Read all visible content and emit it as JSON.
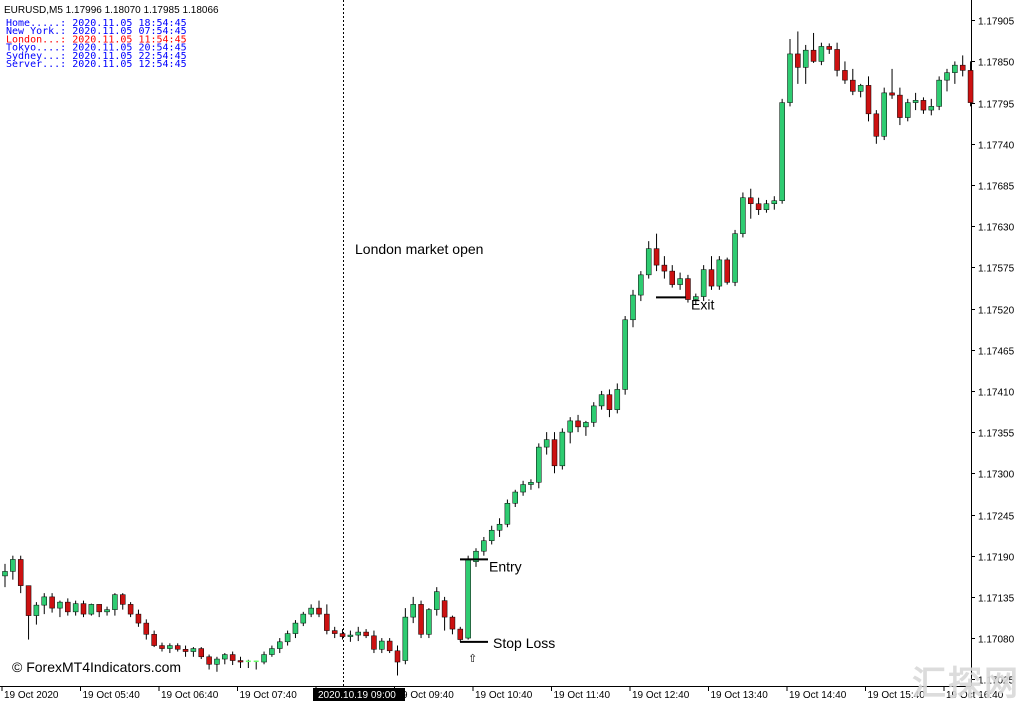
{
  "chart_data": {
    "type": "candlestick",
    "header": "EURUSD,M5  1.17996 1.18070 1.17985 1.18066",
    "symbol": "EURUSD",
    "timeframe": "M5",
    "ohlc_header": {
      "open": 1.17996,
      "high": 1.1807,
      "low": 1.17985,
      "close": 1.18066
    },
    "clocks": [
      {
        "label": "Home.....: 2020.11.05 18:54:45",
        "color": "#0000ff"
      },
      {
        "label": "New York.: 2020.11.05 07:54:45",
        "color": "#0000ff"
      },
      {
        "label": "London...: 2020.11.05 11:54:45",
        "color": "#ff0000"
      },
      {
        "label": "Tokyo....: 2020.11.05 20:54:45",
        "color": "#0000ff"
      },
      {
        "label": "Sydney...: 2020.11.05 22:54:45",
        "color": "#0000ff"
      },
      {
        "label": "Server...: 2020.11.05 12:54:45",
        "color": "#0000ff"
      }
    ],
    "y_ticks": [
      1.17905,
      1.1785,
      1.17795,
      1.1774,
      1.17685,
      1.1763,
      1.17575,
      1.1752,
      1.17465,
      1.1741,
      1.17355,
      1.173,
      1.17245,
      1.1719,
      1.17135,
      1.1708,
      1.17025
    ],
    "y_tick_labels": [
      "1.17905",
      "1.17850",
      "1.17795",
      "1.17740",
      "1.17685",
      "1.17630",
      "1.17575",
      "1.17520",
      "1.17465",
      "1.17410",
      "1.17355",
      "1.17300",
      "1.17245",
      "1.17190",
      "1.17135",
      "1.17080",
      "1.17025"
    ],
    "y_range": [
      1.17016,
      1.17932
    ],
    "x_labels": [
      "19 Oct 2020",
      "19 Oct 05:40",
      "19 Oct 06:40",
      "19 Oct 07:40",
      "2020.10.19 09:00",
      "19 Oct 09:40",
      "19 Oct 10:40",
      "19 Oct 11:40",
      "19 Oct 12:40",
      "19 Oct 13:40",
      "19 Oct 14:40",
      "19 Oct 15:40",
      "19 Oct 16:40"
    ],
    "x_label_highlight_index": 4,
    "annotations": {
      "session": "London market open",
      "entry": "Entry",
      "exit": "Exit",
      "stop_loss": "Stop Loss",
      "entry_price": 1.17185,
      "exit_price": 1.17535,
      "stop_loss_price": 1.17075
    },
    "colors": {
      "bull": "#2ecc71",
      "bear": "#cc1111",
      "doji": "#66ff66",
      "wick": "#000000"
    },
    "candles": [
      {
        "o": 1.17163,
        "h": 1.17179,
        "l": 1.17148,
        "c": 1.17169
      },
      {
        "o": 1.17169,
        "h": 1.1719,
        "l": 1.17158,
        "c": 1.17185
      },
      {
        "o": 1.17185,
        "h": 1.1719,
        "l": 1.1714,
        "c": 1.1715
      },
      {
        "o": 1.1715,
        "h": 1.1715,
        "l": 1.17078,
        "c": 1.1711
      },
      {
        "o": 1.1711,
        "h": 1.17128,
        "l": 1.17098,
        "c": 1.17124
      },
      {
        "o": 1.17124,
        "h": 1.1714,
        "l": 1.17112,
        "c": 1.17135
      },
      {
        "o": 1.17135,
        "h": 1.1714,
        "l": 1.17114,
        "c": 1.1712
      },
      {
        "o": 1.1712,
        "h": 1.1713,
        "l": 1.17108,
        "c": 1.17128
      },
      {
        "o": 1.17128,
        "h": 1.17133,
        "l": 1.1711,
        "c": 1.17115
      },
      {
        "o": 1.17115,
        "h": 1.1713,
        "l": 1.1711,
        "c": 1.17126
      },
      {
        "o": 1.17126,
        "h": 1.1713,
        "l": 1.17108,
        "c": 1.17112
      },
      {
        "o": 1.17112,
        "h": 1.17126,
        "l": 1.1711,
        "c": 1.17125
      },
      {
        "o": 1.17125,
        "h": 1.17125,
        "l": 1.17108,
        "c": 1.17115
      },
      {
        "o": 1.17115,
        "h": 1.17122,
        "l": 1.1711,
        "c": 1.17118
      },
      {
        "o": 1.17118,
        "h": 1.1714,
        "l": 1.1711,
        "c": 1.17138
      },
      {
        "o": 1.17138,
        "h": 1.1714,
        "l": 1.17118,
        "c": 1.17125
      },
      {
        "o": 1.17125,
        "h": 1.17128,
        "l": 1.17108,
        "c": 1.17112
      },
      {
        "o": 1.17112,
        "h": 1.17118,
        "l": 1.17095,
        "c": 1.171
      },
      {
        "o": 1.171,
        "h": 1.17105,
        "l": 1.17078,
        "c": 1.17085
      },
      {
        "o": 1.17085,
        "h": 1.1709,
        "l": 1.17068,
        "c": 1.1707
      },
      {
        "o": 1.1707,
        "h": 1.17074,
        "l": 1.17062,
        "c": 1.17066
      },
      {
        "o": 1.17066,
        "h": 1.17073,
        "l": 1.1706,
        "c": 1.1707
      },
      {
        "o": 1.1707,
        "h": 1.17073,
        "l": 1.17062,
        "c": 1.17065
      },
      {
        "o": 1.17065,
        "h": 1.1707,
        "l": 1.17055,
        "c": 1.17062
      },
      {
        "o": 1.17062,
        "h": 1.17068,
        "l": 1.17055,
        "c": 1.17066
      },
      {
        "o": 1.17066,
        "h": 1.17068,
        "l": 1.17052,
        "c": 1.17055
      },
      {
        "o": 1.17055,
        "h": 1.17058,
        "l": 1.17038,
        "c": 1.17045
      },
      {
        "o": 1.17045,
        "h": 1.17055,
        "l": 1.17035,
        "c": 1.17052
      },
      {
        "o": 1.17052,
        "h": 1.1706,
        "l": 1.17045,
        "c": 1.17058
      },
      {
        "o": 1.17058,
        "h": 1.17062,
        "l": 1.17044,
        "c": 1.1705
      },
      {
        "o": 1.1705,
        "h": 1.17055,
        "l": 1.1704,
        "c": 1.17048
      },
      {
        "o": 1.17048,
        "h": 1.17051,
        "l": 1.1704,
        "c": 1.17049
      },
      {
        "o": 1.17049,
        "h": 1.1705,
        "l": 1.17038,
        "c": 1.17048
      },
      {
        "o": 1.17048,
        "h": 1.17062,
        "l": 1.17045,
        "c": 1.17058
      },
      {
        "o": 1.17058,
        "h": 1.1707,
        "l": 1.17055,
        "c": 1.17066
      },
      {
        "o": 1.17066,
        "h": 1.1708,
        "l": 1.1706,
        "c": 1.17075
      },
      {
        "o": 1.17075,
        "h": 1.1709,
        "l": 1.1707,
        "c": 1.17086
      },
      {
        "o": 1.17086,
        "h": 1.17104,
        "l": 1.1708,
        "c": 1.171
      },
      {
        "o": 1.171,
        "h": 1.17115,
        "l": 1.17096,
        "c": 1.17112
      },
      {
        "o": 1.17112,
        "h": 1.17125,
        "l": 1.17108,
        "c": 1.1712
      },
      {
        "o": 1.1712,
        "h": 1.1713,
        "l": 1.17108,
        "c": 1.17112
      },
      {
        "o": 1.17112,
        "h": 1.17125,
        "l": 1.17085,
        "c": 1.1709
      },
      {
        "o": 1.1709,
        "h": 1.17095,
        "l": 1.1708,
        "c": 1.17086
      },
      {
        "o": 1.17086,
        "h": 1.17092,
        "l": 1.17078,
        "c": 1.17082
      },
      {
        "o": 1.17082,
        "h": 1.1709,
        "l": 1.17075,
        "c": 1.17084
      },
      {
        "o": 1.17084,
        "h": 1.17095,
        "l": 1.17076,
        "c": 1.17088
      },
      {
        "o": 1.17088,
        "h": 1.17092,
        "l": 1.1708,
        "c": 1.17083
      },
      {
        "o": 1.17083,
        "h": 1.1709,
        "l": 1.1706,
        "c": 1.17065
      },
      {
        "o": 1.17065,
        "h": 1.1708,
        "l": 1.1706,
        "c": 1.17076
      },
      {
        "o": 1.17076,
        "h": 1.1708,
        "l": 1.1706,
        "c": 1.17063
      },
      {
        "o": 1.17063,
        "h": 1.1707,
        "l": 1.1703,
        "c": 1.17048
      },
      {
        "o": 1.1705,
        "h": 1.1712,
        "l": 1.17045,
        "c": 1.17108
      },
      {
        "o": 1.17108,
        "h": 1.17135,
        "l": 1.171,
        "c": 1.17125
      },
      {
        "o": 1.17125,
        "h": 1.1713,
        "l": 1.1708,
        "c": 1.17085
      },
      {
        "o": 1.17085,
        "h": 1.1712,
        "l": 1.1708,
        "c": 1.17118
      },
      {
        "o": 1.17118,
        "h": 1.17148,
        "l": 1.1711,
        "c": 1.17142
      },
      {
        "o": 1.1713,
        "h": 1.17135,
        "l": 1.1709,
        "c": 1.17108
      },
      {
        "o": 1.17108,
        "h": 1.1711,
        "l": 1.17085,
        "c": 1.17092
      },
      {
        "o": 1.17092,
        "h": 1.17095,
        "l": 1.17075,
        "c": 1.17078
      },
      {
        "o": 1.1708,
        "h": 1.1719,
        "l": 1.17078,
        "c": 1.17185
      },
      {
        "o": 1.17182,
        "h": 1.172,
        "l": 1.17175,
        "c": 1.17196
      },
      {
        "o": 1.17196,
        "h": 1.17215,
        "l": 1.1719,
        "c": 1.1721
      },
      {
        "o": 1.1721,
        "h": 1.1723,
        "l": 1.17205,
        "c": 1.17224
      },
      {
        "o": 1.17224,
        "h": 1.1724,
        "l": 1.17215,
        "c": 1.17232
      },
      {
        "o": 1.17232,
        "h": 1.17265,
        "l": 1.17228,
        "c": 1.1726
      },
      {
        "o": 1.1726,
        "h": 1.17278,
        "l": 1.17255,
        "c": 1.17275
      },
      {
        "o": 1.17275,
        "h": 1.1729,
        "l": 1.1727,
        "c": 1.17285
      },
      {
        "o": 1.17285,
        "h": 1.17292,
        "l": 1.17278,
        "c": 1.17288
      },
      {
        "o": 1.17288,
        "h": 1.1734,
        "l": 1.1728,
        "c": 1.17335
      },
      {
        "o": 1.17335,
        "h": 1.17355,
        "l": 1.17325,
        "c": 1.17345
      },
      {
        "o": 1.17345,
        "h": 1.17355,
        "l": 1.173,
        "c": 1.1731
      },
      {
        "o": 1.1731,
        "h": 1.1736,
        "l": 1.17305,
        "c": 1.17355
      },
      {
        "o": 1.17355,
        "h": 1.17375,
        "l": 1.1734,
        "c": 1.1737
      },
      {
        "o": 1.1737,
        "h": 1.17378,
        "l": 1.17355,
        "c": 1.17362
      },
      {
        "o": 1.17362,
        "h": 1.1737,
        "l": 1.1735,
        "c": 1.17368
      },
      {
        "o": 1.17368,
        "h": 1.17395,
        "l": 1.17362,
        "c": 1.1739
      },
      {
        "o": 1.1739,
        "h": 1.1741,
        "l": 1.17385,
        "c": 1.17405
      },
      {
        "o": 1.17405,
        "h": 1.17412,
        "l": 1.17375,
        "c": 1.17385
      },
      {
        "o": 1.17385,
        "h": 1.1742,
        "l": 1.1738,
        "c": 1.17412
      },
      {
        "o": 1.17412,
        "h": 1.1751,
        "l": 1.17405,
        "c": 1.17505
      },
      {
        "o": 1.17505,
        "h": 1.17545,
        "l": 1.17495,
        "c": 1.17538
      },
      {
        "o": 1.17538,
        "h": 1.1757,
        "l": 1.1753,
        "c": 1.17565
      },
      {
        "o": 1.17565,
        "h": 1.1761,
        "l": 1.1756,
        "c": 1.176
      },
      {
        "o": 1.176,
        "h": 1.1762,
        "l": 1.1757,
        "c": 1.17578
      },
      {
        "o": 1.17578,
        "h": 1.1759,
        "l": 1.1756,
        "c": 1.1757
      },
      {
        "o": 1.1757,
        "h": 1.17578,
        "l": 1.17548,
        "c": 1.17552
      },
      {
        "o": 1.17552,
        "h": 1.17568,
        "l": 1.17545,
        "c": 1.1756
      },
      {
        "o": 1.1756,
        "h": 1.17565,
        "l": 1.17528,
        "c": 1.17532
      },
      {
        "o": 1.17532,
        "h": 1.1754,
        "l": 1.17525,
        "c": 1.17536
      },
      {
        "o": 1.17536,
        "h": 1.17578,
        "l": 1.1753,
        "c": 1.17572
      },
      {
        "o": 1.17572,
        "h": 1.1759,
        "l": 1.17545,
        "c": 1.1755
      },
      {
        "o": 1.1755,
        "h": 1.1759,
        "l": 1.17545,
        "c": 1.17585
      },
      {
        "o": 1.17585,
        "h": 1.17588,
        "l": 1.17552,
        "c": 1.17555
      },
      {
        "o": 1.17555,
        "h": 1.17625,
        "l": 1.1755,
        "c": 1.1762
      },
      {
        "o": 1.1762,
        "h": 1.17675,
        "l": 1.17615,
        "c": 1.17668
      },
      {
        "o": 1.17668,
        "h": 1.1768,
        "l": 1.1764,
        "c": 1.1766
      },
      {
        "o": 1.1766,
        "h": 1.17668,
        "l": 1.17645,
        "c": 1.17652
      },
      {
        "o": 1.17652,
        "h": 1.17665,
        "l": 1.17648,
        "c": 1.1766
      },
      {
        "o": 1.1766,
        "h": 1.1767,
        "l": 1.17652,
        "c": 1.17664
      },
      {
        "o": 1.17664,
        "h": 1.178,
        "l": 1.1766,
        "c": 1.17795
      },
      {
        "o": 1.17795,
        "h": 1.1788,
        "l": 1.1779,
        "c": 1.1786
      },
      {
        "o": 1.1786,
        "h": 1.1789,
        "l": 1.1782,
        "c": 1.17842
      },
      {
        "o": 1.17842,
        "h": 1.17872,
        "l": 1.1782,
        "c": 1.17865
      },
      {
        "o": 1.17865,
        "h": 1.17888,
        "l": 1.17848,
        "c": 1.1785
      },
      {
        "o": 1.1785,
        "h": 1.17875,
        "l": 1.17845,
        "c": 1.1787
      },
      {
        "o": 1.1787,
        "h": 1.17874,
        "l": 1.1786,
        "c": 1.17866
      },
      {
        "o": 1.17866,
        "h": 1.17875,
        "l": 1.1783,
        "c": 1.17838
      },
      {
        "o": 1.17838,
        "h": 1.1785,
        "l": 1.1782,
        "c": 1.17825
      },
      {
        "o": 1.17825,
        "h": 1.1784,
        "l": 1.17805,
        "c": 1.1781
      },
      {
        "o": 1.1781,
        "h": 1.1782,
        "l": 1.17802,
        "c": 1.17818
      },
      {
        "o": 1.17818,
        "h": 1.1783,
        "l": 1.1777,
        "c": 1.1778
      },
      {
        "o": 1.1778,
        "h": 1.17785,
        "l": 1.1774,
        "c": 1.1775
      },
      {
        "o": 1.1775,
        "h": 1.17815,
        "l": 1.17745,
        "c": 1.17808
      },
      {
        "o": 1.17808,
        "h": 1.1784,
        "l": 1.178,
        "c": 1.17805
      },
      {
        "o": 1.17805,
        "h": 1.17815,
        "l": 1.17765,
        "c": 1.17775
      },
      {
        "o": 1.17775,
        "h": 1.178,
        "l": 1.1777,
        "c": 1.17795
      },
      {
        "o": 1.17795,
        "h": 1.17808,
        "l": 1.17785,
        "c": 1.17798
      },
      {
        "o": 1.17798,
        "h": 1.17802,
        "l": 1.1778,
        "c": 1.17785
      },
      {
        "o": 1.17785,
        "h": 1.178,
        "l": 1.17778,
        "c": 1.1779
      },
      {
        "o": 1.1779,
        "h": 1.1783,
        "l": 1.17785,
        "c": 1.17825
      },
      {
        "o": 1.17825,
        "h": 1.1784,
        "l": 1.1781,
        "c": 1.17835
      },
      {
        "o": 1.17835,
        "h": 1.1785,
        "l": 1.1782,
        "c": 1.17845
      },
      {
        "o": 1.17845,
        "h": 1.17858,
        "l": 1.1783,
        "c": 1.17838
      },
      {
        "o": 1.17838,
        "h": 1.1785,
        "l": 1.1779,
        "c": 1.17795
      }
    ]
  },
  "watermarks": {
    "site": "© ForexMT4Indicators.com",
    "stamp": "汇探网"
  }
}
